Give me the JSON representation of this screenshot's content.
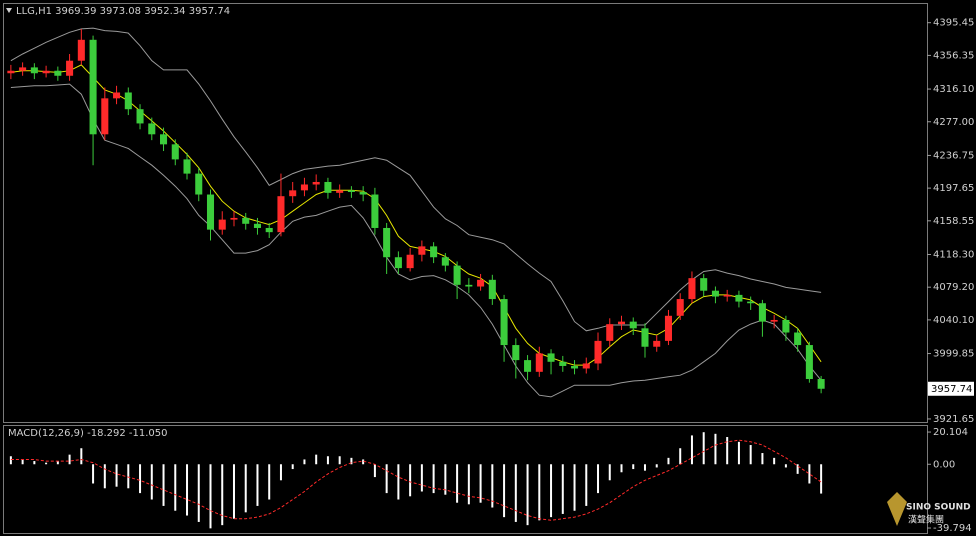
{
  "chart_data": [
    {
      "type": "candlestick",
      "title": "LLG,H1  3969.39 3973.08 3952.34 3957.74",
      "open": [
        4335,
        4338,
        4342,
        4335,
        4338,
        4332,
        4350,
        4375,
        4262,
        4305,
        4312,
        4292,
        4275,
        4262,
        4250,
        4232,
        4215,
        4190,
        4148,
        4160,
        4162,
        4155,
        4150,
        4145,
        4188,
        4195,
        4202,
        4205,
        4192,
        4195,
        4193,
        4190,
        4150,
        4115,
        4102,
        4118,
        4128,
        4115,
        4105,
        4082,
        4080,
        4088,
        4065,
        4010,
        3992,
        3978,
        4000,
        3990,
        3985,
        3982,
        3988,
        4015,
        4035,
        4038,
        4030,
        4008,
        4015,
        4045,
        4065,
        4090,
        4075,
        4068,
        4070,
        4062,
        4060,
        4038,
        4040,
        4025,
        4010,
        3969.39
      ],
      "high": [
        4345,
        4348,
        4347,
        4344,
        4343,
        4358,
        4388,
        4380,
        4318,
        4320,
        4318,
        4298,
        4282,
        4270,
        4256,
        4240,
        4222,
        4196,
        4170,
        4170,
        4168,
        4162,
        4156,
        4215,
        4205,
        4210,
        4214,
        4210,
        4202,
        4200,
        4200,
        4198,
        4156,
        4122,
        4126,
        4135,
        4133,
        4120,
        4110,
        4090,
        4095,
        4094,
        4070,
        4018,
        3998,
        4008,
        4005,
        3997,
        3992,
        3995,
        4025,
        4042,
        4045,
        4043,
        4036,
        4022,
        4052,
        4072,
        4098,
        4095,
        4080,
        4076,
        4075,
        4068,
        4064,
        4046,
        4045,
        4030,
        4014,
        3973.08
      ],
      "low": [
        4328,
        4332,
        4328,
        4330,
        4326,
        4326,
        4345,
        4225,
        4255,
        4298,
        4285,
        4268,
        4255,
        4242,
        4225,
        4208,
        4182,
        4135,
        4142,
        4152,
        4148,
        4142,
        4138,
        4140,
        4180,
        4188,
        4195,
        4185,
        4186,
        4186,
        4182,
        4142,
        4095,
        4095,
        4098,
        4110,
        4108,
        4098,
        4065,
        4072,
        4075,
        4058,
        3990,
        3970,
        3968,
        3972,
        3975,
        3978,
        3975,
        3976,
        3980,
        4008,
        4028,
        4022,
        3995,
        4002,
        4010,
        4040,
        4060,
        4068,
        4060,
        4062,
        4055,
        4052,
        4020,
        4030,
        4015,
        4002,
        3965,
        3952.34
      ],
      "close": [
        4338,
        4342,
        4335,
        4338,
        4332,
        4350,
        4375,
        4262,
        4305,
        4312,
        4292,
        4275,
        4262,
        4250,
        4232,
        4215,
        4190,
        4148,
        4160,
        4162,
        4155,
        4150,
        4145,
        4188,
        4195,
        4202,
        4205,
        4192,
        4195,
        4193,
        4190,
        4150,
        4115,
        4102,
        4118,
        4128,
        4115,
        4105,
        4082,
        4080,
        4088,
        4065,
        4010,
        3992,
        3978,
        4000,
        3990,
        3985,
        3982,
        3988,
        4015,
        4035,
        4038,
        4030,
        4008,
        4015,
        4045,
        4065,
        4090,
        4075,
        4068,
        4070,
        4062,
        4060,
        4038,
        4040,
        4025,
        4010,
        3969.39,
        3957.74
      ],
      "up_color": "#ff2a2a",
      "down_color": "#3ccd3c",
      "series": [
        {
          "color": "#9a9a9a",
          "values": [
            4350,
            4358,
            4365,
            4372,
            4378,
            4384,
            4388,
            4389,
            4386,
            4385,
            4383,
            4368,
            4350,
            4339,
            4339,
            4339,
            4322,
            4302,
            4280,
            4259,
            4241,
            4222,
            4201,
            4208,
            4215,
            4220,
            4222,
            4224,
            4225,
            4228,
            4231,
            4234,
            4231,
            4222,
            4213,
            4194,
            4175,
            4161,
            4153,
            4142,
            4139,
            4136,
            4131,
            4119,
            4107,
            4096,
            4086,
            4063,
            4038,
            4027,
            4030,
            4034,
            4034,
            4034,
            4034,
            4048,
            4062,
            4076,
            4088,
            4098,
            4100,
            4096,
            4093,
            4089,
            4086,
            4083,
            4079,
            4077,
            4075,
            4073
          ]
        },
        {
          "color": "#9a9a9a",
          "values": [
            4318,
            4319,
            4320,
            4320,
            4321,
            4322,
            4310,
            4280,
            4255,
            4250,
            4245,
            4235,
            4225,
            4213,
            4200,
            4185,
            4165,
            4152,
            4136,
            4120,
            4120,
            4123,
            4130,
            4145,
            4158,
            4163,
            4165,
            4170,
            4175,
            4177,
            4162,
            4140,
            4115,
            4095,
            4088,
            4092,
            4093,
            4088,
            4080,
            4070,
            4055,
            4035,
            4010,
            3985,
            3965,
            3950,
            3948,
            3955,
            3962,
            3962,
            3962,
            3962,
            3965,
            3967,
            3968,
            3970,
            3972,
            3974,
            3980,
            3990,
            4000,
            4015,
            4028,
            4035,
            4040,
            4035,
            4020,
            4005,
            3985,
            3968
          ]
        },
        {
          "color": "#e6e600",
          "values": [
            4336,
            4338,
            4338,
            4337,
            4336,
            4338,
            4345,
            4330,
            4315,
            4310,
            4302,
            4290,
            4278,
            4266,
            4252,
            4238,
            4222,
            4200,
            4182,
            4170,
            4162,
            4158,
            4154,
            4160,
            4170,
            4180,
            4190,
            4195,
            4195,
            4195,
            4194,
            4185,
            4165,
            4140,
            4128,
            4125,
            4122,
            4116,
            4105,
            4095,
            4090,
            4080,
            4055,
            4030,
            4012,
            4000,
            3995,
            3990,
            3986,
            3986,
            3995,
            4008,
            4020,
            4028,
            4025,
            4022,
            4030,
            4045,
            4060,
            4068,
            4070,
            4070,
            4067,
            4064,
            4055,
            4048,
            4040,
            4030,
            4010,
            3990
          ]
        }
      ],
      "last_price": 3957.74,
      "ylim": [
        3918,
        4419
      ],
      "yticks": [
        4395.45,
        4356.35,
        {
          "value": 4316.1,
          "label": "4316.10"
        },
        {
          "value": 4277,
          "label": "4277.00"
        },
        4236.75,
        4197.65,
        4158.55,
        {
          "value": 4118.3,
          "label": "4118.30"
        },
        {
          "value": 4079.2,
          "label": "4079.20"
        },
        {
          "value": 4040.1,
          "label": "4040.10"
        },
        3999.85,
        3921.65
      ]
    },
    {
      "type": "bar",
      "title": "MACD(12,26,9) -18.292 -11.050",
      "values": [
        5,
        3,
        2,
        1,
        2,
        6,
        10,
        -12,
        -15,
        -14,
        -15,
        -18,
        -22,
        -26,
        -29,
        -32,
        -36,
        -40,
        -38,
        -34,
        -30,
        -26,
        -22,
        -10,
        -3,
        3,
        6,
        5,
        5,
        4,
        3,
        -8,
        -18,
        -22,
        -20,
        -17,
        -18,
        -19,
        -24,
        -25,
        -24,
        -27,
        -33,
        -36,
        -38,
        -35,
        -33,
        -31,
        -29,
        -26,
        -18,
        -10,
        -5,
        -3,
        -4,
        -2,
        4,
        10,
        18,
        20,
        19,
        17,
        14,
        12,
        7,
        4,
        -2,
        -6,
        -12,
        -18.292
      ],
      "color": "#ffffff",
      "series": [
        {
          "color": "#ff2a2a",
          "values": [
            3,
            3,
            3,
            2,
            2,
            2,
            3,
            1,
            -3,
            -6,
            -8,
            -10,
            -13,
            -16,
            -19,
            -22,
            -25,
            -29,
            -32,
            -34,
            -34,
            -33,
            -31,
            -27,
            -22,
            -17,
            -11,
            -6,
            -2,
            1,
            2,
            0,
            -4,
            -8,
            -11,
            -13,
            -15,
            -16,
            -18,
            -20,
            -21,
            -23,
            -26,
            -29,
            -32,
            -34,
            -35,
            -34,
            -33,
            -31,
            -28,
            -24,
            -19,
            -14,
            -10,
            -7,
            -4,
            0,
            4,
            8,
            12,
            14,
            15,
            14,
            12,
            8,
            4,
            -1,
            -6,
            -11.05
          ]
        }
      ],
      "ylim": [
        -42.9,
        24.5
      ],
      "yticks": [
        20.104,
        {
          "value": 0,
          "label": "0.00"
        },
        -39.794
      ]
    }
  ],
  "watermark": {
    "brand": "SINO SOUND",
    "cn": "漢聲集團"
  }
}
